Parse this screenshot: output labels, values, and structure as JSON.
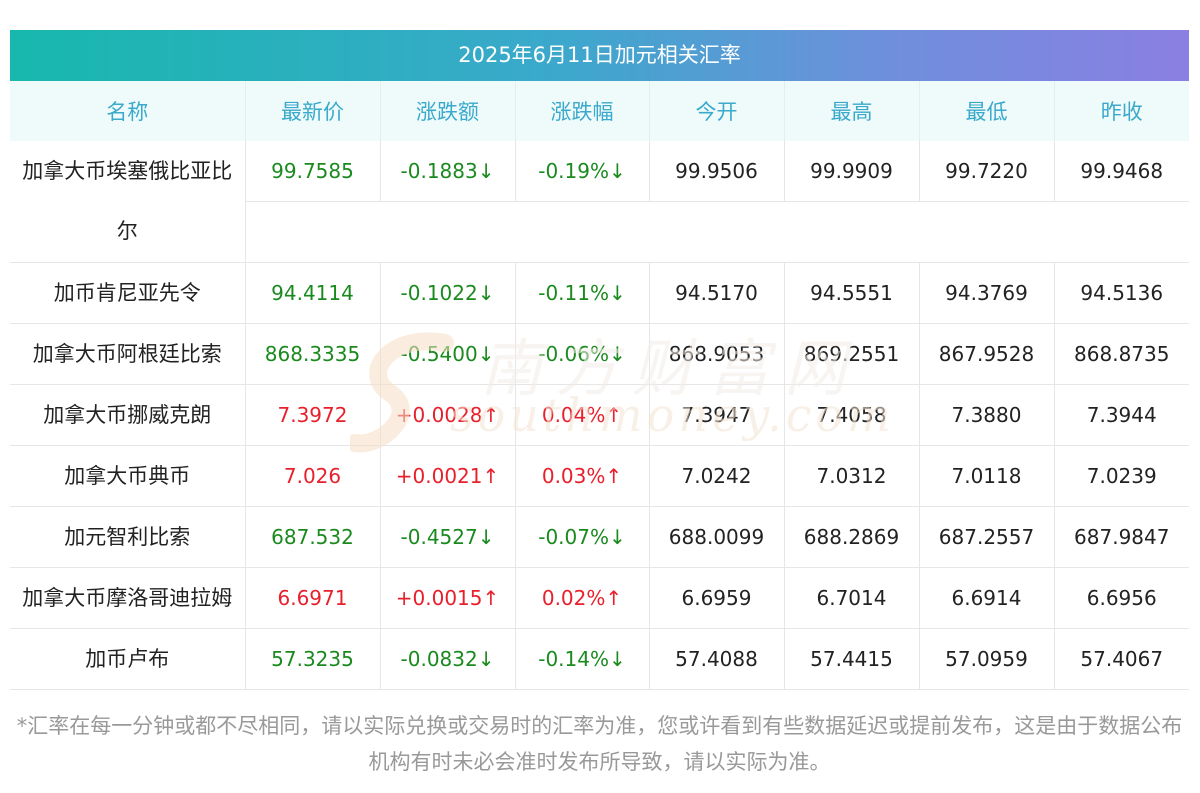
{
  "title": "2025年6月11日加元相关汇率",
  "headers": [
    "名称",
    "最新价",
    "涨跌额",
    "涨跌幅",
    "今开",
    "最高",
    "最低",
    "昨收"
  ],
  "rows": [
    {
      "name_line1": "加拿大币埃塞俄比亚比",
      "name_line2": "尔",
      "price": "99.7585",
      "change": "-0.1883↓",
      "pct": "-0.19%↓",
      "open": "99.9506",
      "high": "99.9909",
      "low": "99.7220",
      "prev": "99.9468",
      "dir": "down"
    },
    {
      "name_line1": "加币肯尼亚先令",
      "name_line2": "",
      "price": "94.4114",
      "change": "-0.1022↓",
      "pct": "-0.11%↓",
      "open": "94.5170",
      "high": "94.5551",
      "low": "94.3769",
      "prev": "94.5136",
      "dir": "down"
    },
    {
      "name_line1": "加拿大币阿根廷比索",
      "name_line2": "",
      "price": "868.3335",
      "change": "-0.5400↓",
      "pct": "-0.06%↓",
      "open": "868.9053",
      "high": "869.2551",
      "low": "867.9528",
      "prev": "868.8735",
      "dir": "down"
    },
    {
      "name_line1": "加拿大币挪威克朗",
      "name_line2": "",
      "price": "7.3972",
      "change": "+0.0028↑",
      "pct": "0.04%↑",
      "open": "7.3947",
      "high": "7.4058",
      "low": "7.3880",
      "prev": "7.3944",
      "dir": "up"
    },
    {
      "name_line1": "加拿大币典币",
      "name_line2": "",
      "price": "7.026",
      "change": "+0.0021↑",
      "pct": "0.03%↑",
      "open": "7.0242",
      "high": "7.0312",
      "low": "7.0118",
      "prev": "7.0239",
      "dir": "up"
    },
    {
      "name_line1": "加元智利比索",
      "name_line2": "",
      "price": "687.532",
      "change": "-0.4527↓",
      "pct": "-0.07%↓",
      "open": "688.0099",
      "high": "688.2869",
      "low": "687.2557",
      "prev": "687.9847",
      "dir": "down"
    },
    {
      "name_line1": "加拿大币摩洛哥迪拉姆",
      "name_line2": "",
      "price": "6.6971",
      "change": "+0.0015↑",
      "pct": "0.02%↑",
      "open": "6.6959",
      "high": "6.7014",
      "low": "6.6914",
      "prev": "6.6956",
      "dir": "up"
    },
    {
      "name_line1": "加币卢布",
      "name_line2": "",
      "price": "57.3235",
      "change": "-0.0832↓",
      "pct": "-0.14%↓",
      "open": "57.4088",
      "high": "57.4415",
      "low": "57.0959",
      "prev": "57.4067",
      "dir": "down"
    }
  ],
  "note": "*汇率在每一分钟或都不尽相同，请以实际兑换或交易时的汇率为准，您或许看到有些数据延迟或提前发布，这是由于数据公布机构有时未必会准时发布所导致，请以实际为准。",
  "watermark": {
    "cn": "南方财富网",
    "en": "southmoney.com"
  },
  "colors": {
    "up": "#e8202c",
    "down": "#1a8a1e",
    "header_text": "#3aa9cb",
    "header_bg": "#effbfb"
  }
}
